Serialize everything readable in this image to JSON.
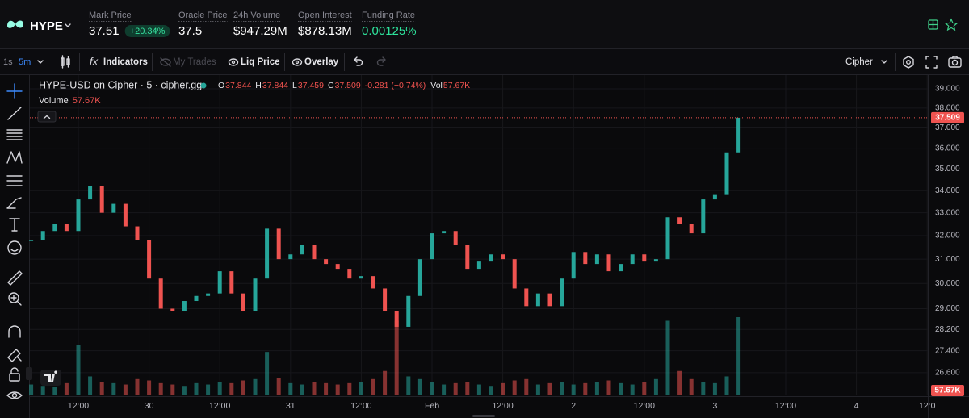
{
  "header": {
    "symbol": "HYPE",
    "stats": [
      {
        "label": "Mark Price",
        "value": "37.51",
        "change": "+20.34%"
      },
      {
        "label": "Oracle Price",
        "value": "37.5"
      },
      {
        "label": "24h Volume",
        "value": "$947.29M"
      },
      {
        "label": "Open Interest",
        "value": "$878.13M"
      },
      {
        "label": "Funding Rate",
        "value": "0.00125%"
      }
    ]
  },
  "toolbar": {
    "intervals": [
      "1s",
      "5m"
    ],
    "fx": "fx",
    "buttons": [
      "Indicators",
      "My Trades",
      "Liq Price",
      "Overlay"
    ],
    "source": "Cipher"
  },
  "chart_data": {
    "type": "candlestick",
    "title": "HYPE-USD on Cipher · 5 · cipher.gg",
    "legend": [
      {
        "key": "O",
        "value": "37.844"
      },
      {
        "key": "H",
        "value": "37.844"
      },
      {
        "key": "L",
        "value": "37.459"
      },
      {
        "key": "C",
        "value": "37.509"
      }
    ],
    "change": "-0.281 (−0.74%)",
    "volume_key": "Vol",
    "volume_name": "Volume",
    "volume_label": "57.67K",
    "log": true,
    "grid": true,
    "up_color": "#26a69a",
    "down_color": "#ef5350",
    "categories": [
      null,
      null,
      null,
      null,
      null,
      null,
      null,
      null,
      null,
      null,
      null,
      null,
      null,
      null,
      null,
      null,
      null,
      null,
      null,
      null,
      null,
      null,
      null,
      null,
      null,
      null,
      null,
      null,
      null,
      null,
      null,
      null,
      null,
      null,
      null,
      null,
      null,
      null,
      null,
      null,
      null,
      null,
      null,
      null,
      null,
      null,
      null,
      null,
      null,
      null,
      null,
      null,
      null,
      null,
      null,
      null,
      null,
      null,
      null,
      null,
      null,
      null,
      null,
      null,
      null,
      null,
      null,
      null,
      null,
      null,
      null,
      null,
      null,
      null,
      null,
      null,
      null,
      null
    ],
    "closes": [
      31.8,
      32.2,
      32.5,
      32.2,
      33.6,
      34.2,
      33.0,
      33.4,
      32.4,
      31.8,
      30.2,
      29.0,
      28.9,
      29.3,
      29.5,
      29.6,
      30.5,
      29.6,
      28.9,
      30.2,
      32.3,
      31.0,
      31.2,
      31.6,
      31.0,
      30.8,
      30.6,
      30.2,
      30.3,
      29.8,
      28.9,
      28.3,
      29.5,
      31.0,
      32.1,
      32.2,
      31.6,
      30.6,
      30.9,
      31.2,
      31.0,
      29.8,
      29.1,
      29.6,
      29.1,
      30.2,
      31.3,
      30.8,
      31.2,
      30.5,
      30.8,
      31.2,
      30.9,
      31.0,
      32.8,
      32.5,
      32.1,
      33.6,
      33.8,
      35.8,
      37.509,
      null,
      null,
      null,
      null,
      null,
      null,
      null,
      null,
      null,
      null,
      null,
      null,
      null,
      null,
      null,
      null,
      null
    ],
    "volumes": [
      8,
      7,
      6,
      9,
      37,
      14,
      10,
      9,
      8,
      12,
      11,
      9,
      8,
      7,
      9,
      8,
      10,
      9,
      11,
      12,
      32,
      13,
      9,
      8,
      10,
      9,
      8,
      9,
      10,
      12,
      18,
      55,
      14,
      12,
      10,
      8,
      9,
      10,
      8,
      7,
      9,
      11,
      12,
      8,
      9,
      10,
      8,
      9,
      10,
      11,
      9,
      8,
      10,
      12,
      55,
      18,
      12,
      10,
      9,
      14,
      57.67,
      null,
      null,
      null,
      null,
      null,
      null,
      null,
      null,
      null,
      null,
      null,
      null,
      null,
      null,
      null,
      null,
      null
    ],
    "ylim": [
      25.8,
      39.6
    ],
    "yticks": [
      {
        "value": 39,
        "label": "39.000"
      },
      {
        "value": 38,
        "label": "38.000"
      },
      {
        "value": 37,
        "label": "37.000"
      },
      {
        "value": 36,
        "label": "36.000"
      },
      {
        "value": 35,
        "label": "35.000"
      },
      {
        "value": 34,
        "label": "34.000"
      },
      {
        "value": 33,
        "label": "33.000"
      },
      {
        "value": 32,
        "label": "32.000"
      },
      {
        "value": 31,
        "label": "31.000"
      },
      {
        "value": 30,
        "label": "30.000"
      },
      {
        "value": 29,
        "label": "29.000"
      },
      {
        "value": 28.2,
        "label": "28.200"
      },
      {
        "value": 27.4,
        "label": "27.400"
      },
      {
        "value": 26.6,
        "label": "26.600"
      }
    ],
    "xticks": [
      {
        "value": 4,
        "label": "12:00"
      },
      {
        "value": 10,
        "label": "30"
      },
      {
        "value": 16,
        "label": "12:00"
      },
      {
        "value": 22,
        "label": "31"
      },
      {
        "value": 28,
        "label": "12:00"
      },
      {
        "value": 34,
        "label": "Feb"
      },
      {
        "value": 40,
        "label": "12:00"
      },
      {
        "value": 46,
        "label": "2"
      },
      {
        "value": 52,
        "label": "12:00"
      },
      {
        "value": 58,
        "label": "3"
      },
      {
        "value": 64,
        "label": "12:00"
      },
      {
        "value": 70,
        "label": "4"
      },
      {
        "value": 76,
        "label": "12:0"
      }
    ]
  }
}
